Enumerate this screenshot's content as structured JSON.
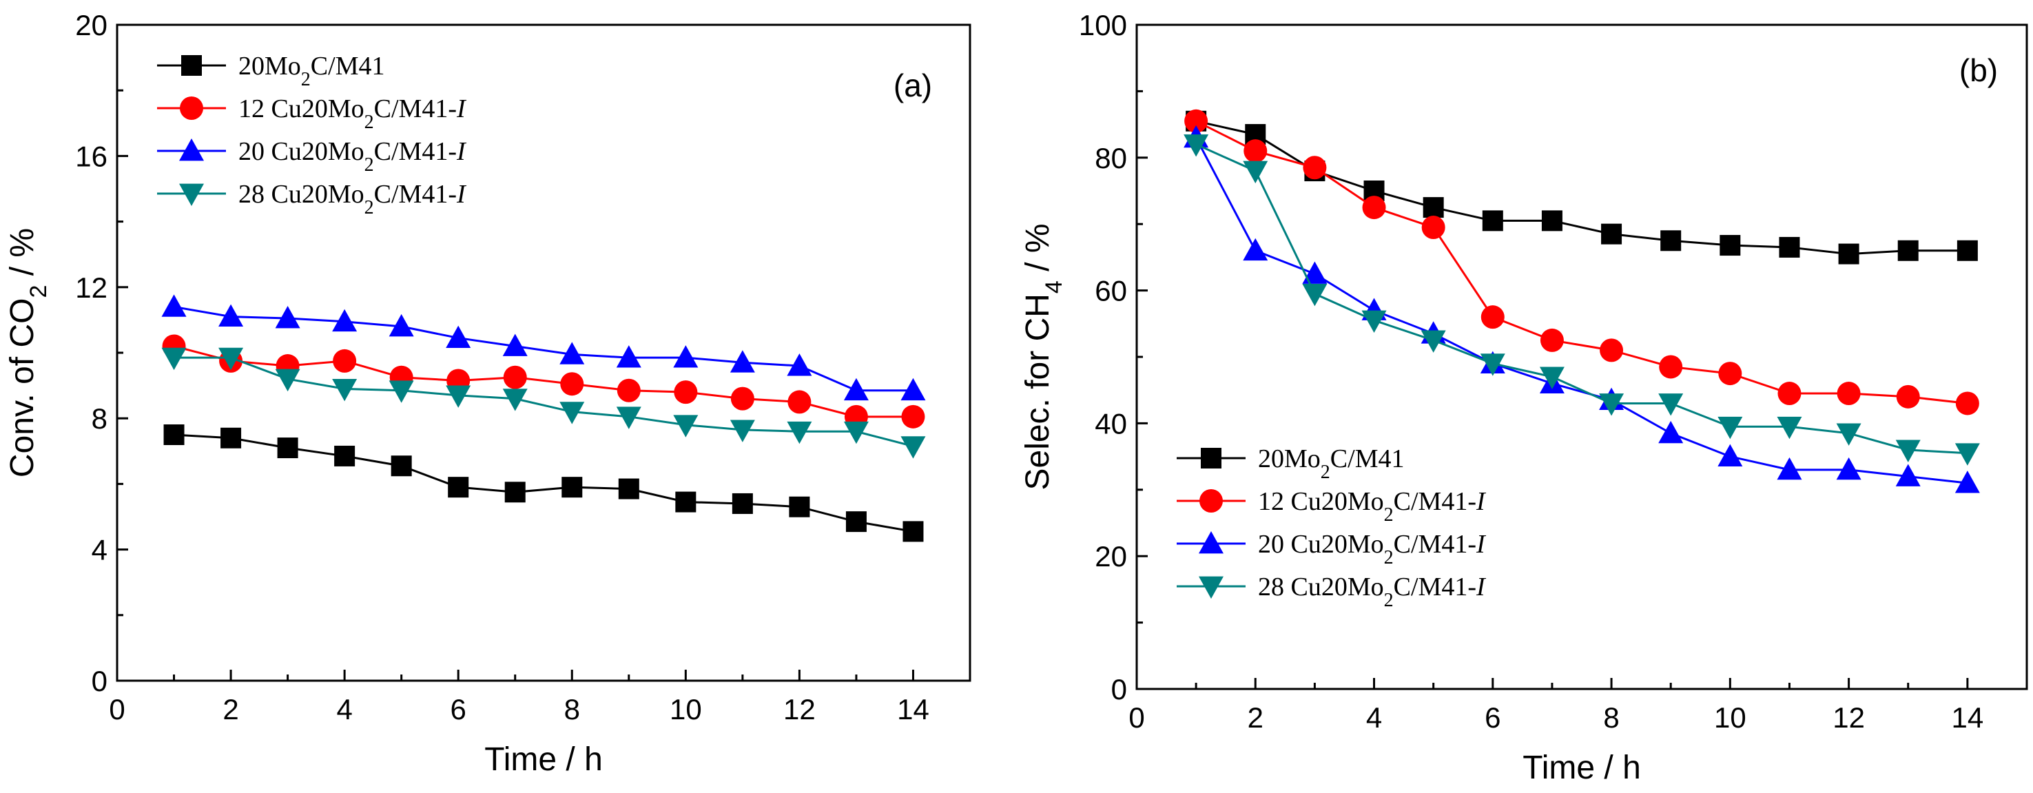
{
  "chart_data": [
    {
      "type": "line",
      "panel_label": "(a)",
      "xlabel": "Time / h",
      "ylabel_prefix": "Conv. of CO",
      "ylabel_sub": "2",
      "ylabel_suffix": " / %",
      "xlim": [
        0,
        15
      ],
      "ylim": [
        0,
        20
      ],
      "xticks": [
        0,
        2,
        4,
        6,
        8,
        10,
        12,
        14
      ],
      "yticks": [
        0,
        4,
        8,
        12,
        16,
        20
      ],
      "xtick_labels": [
        "0",
        "2",
        "4",
        "6",
        "8",
        "10",
        "12",
        "14"
      ],
      "ytick_labels": [
        "0",
        "4",
        "8",
        "12",
        "16",
        "20"
      ],
      "legend_position": "top-left",
      "x": [
        1,
        2,
        3,
        4,
        5,
        6,
        7,
        8,
        9,
        10,
        11,
        12,
        13,
        14
      ],
      "series": [
        {
          "name": "20Mo2C/M41",
          "label_parts": [
            "20Mo",
            "2",
            "C/M41",
            ""
          ],
          "color": "#000000",
          "marker": "square",
          "values": [
            7.5,
            7.4,
            7.1,
            6.85,
            6.55,
            5.9,
            5.75,
            5.9,
            5.85,
            5.45,
            5.4,
            5.3,
            4.85,
            4.55
          ]
        },
        {
          "name": "12 Cu20Mo2C/M41-I",
          "label_parts": [
            "12 Cu20Mo",
            "2",
            "C/M41-",
            "I"
          ],
          "color": "#ff0000",
          "marker": "circle",
          "values": [
            10.2,
            9.75,
            9.6,
            9.75,
            9.25,
            9.15,
            9.25,
            9.05,
            8.85,
            8.8,
            8.6,
            8.5,
            8.05,
            8.05
          ]
        },
        {
          "name": "20 Cu20Mo2C/M41-I",
          "label_parts": [
            "20 Cu20Mo",
            "2",
            "C/M41-",
            "I"
          ],
          "color": "#0000ff",
          "marker": "triangle-up",
          "values": [
            11.4,
            11.1,
            11.05,
            10.95,
            10.8,
            10.45,
            10.2,
            9.95,
            9.85,
            9.85,
            9.7,
            9.6,
            8.85,
            8.85
          ]
        },
        {
          "name": "28 Cu20Mo2C/M41-I",
          "label_parts": [
            "28 Cu20Mo",
            "2",
            "C/M41-",
            "I"
          ],
          "color": "#008080",
          "marker": "triangle-down",
          "values": [
            9.85,
            9.85,
            9.2,
            8.9,
            8.85,
            8.7,
            8.6,
            8.2,
            8.05,
            7.8,
            7.65,
            7.6,
            7.6,
            7.15
          ]
        }
      ]
    },
    {
      "type": "line",
      "panel_label": "(b)",
      "xlabel": "Time / h",
      "ylabel_prefix": "Selec. for CH",
      "ylabel_sub": "4",
      "ylabel_suffix": " / %",
      "xlim": [
        0,
        15
      ],
      "ylim": [
        0,
        100
      ],
      "xticks": [
        0,
        2,
        4,
        6,
        8,
        10,
        12,
        14
      ],
      "yticks": [
        0,
        20,
        40,
        60,
        80,
        100
      ],
      "xtick_labels": [
        "0",
        "2",
        "4",
        "6",
        "8",
        "10",
        "12",
        "14"
      ],
      "ytick_labels": [
        "0",
        "20",
        "40",
        "60",
        "80",
        "100"
      ],
      "legend_position": "bottom-left",
      "x": [
        1,
        2,
        3,
        4,
        5,
        6,
        7,
        8,
        9,
        10,
        11,
        12,
        13,
        14
      ],
      "series": [
        {
          "name": "20Mo2C/M41",
          "label_parts": [
            "20Mo",
            "2",
            "C/M41",
            ""
          ],
          "color": "#000000",
          "marker": "square",
          "values": [
            85.5,
            83.5,
            78,
            75,
            72.5,
            70.5,
            70.5,
            68.5,
            67.5,
            66.8,
            66.5,
            65.5,
            66,
            66
          ]
        },
        {
          "name": "12 Cu20Mo2C/M41-I",
          "label_parts": [
            "12 Cu20Mo",
            "2",
            "C/M41-",
            "I"
          ],
          "color": "#ff0000",
          "marker": "circle",
          "values": [
            85.5,
            81,
            78.5,
            72.5,
            69.5,
            56,
            52.5,
            51,
            48.5,
            47.5,
            44.5,
            44.5,
            44,
            43
          ]
        },
        {
          "name": "20 Cu20Mo2C/M41-I",
          "label_parts": [
            "20 Cu20Mo",
            "2",
            "C/M41-",
            "I"
          ],
          "color": "#0000ff",
          "marker": "triangle-up",
          "values": [
            83,
            66,
            62.5,
            57,
            53.5,
            49,
            46,
            43.5,
            38.5,
            35,
            33,
            33,
            32,
            31
          ]
        },
        {
          "name": "28 Cu20Mo2C/M41-I",
          "label_parts": [
            "28 Cu20Mo",
            "2",
            "C/M41-",
            "I"
          ],
          "color": "#008080",
          "marker": "triangle-down",
          "values": [
            82,
            78,
            59.5,
            55.5,
            52.5,
            49,
            47,
            43,
            43,
            39.5,
            39.5,
            38.5,
            36,
            35.5
          ]
        }
      ]
    }
  ]
}
